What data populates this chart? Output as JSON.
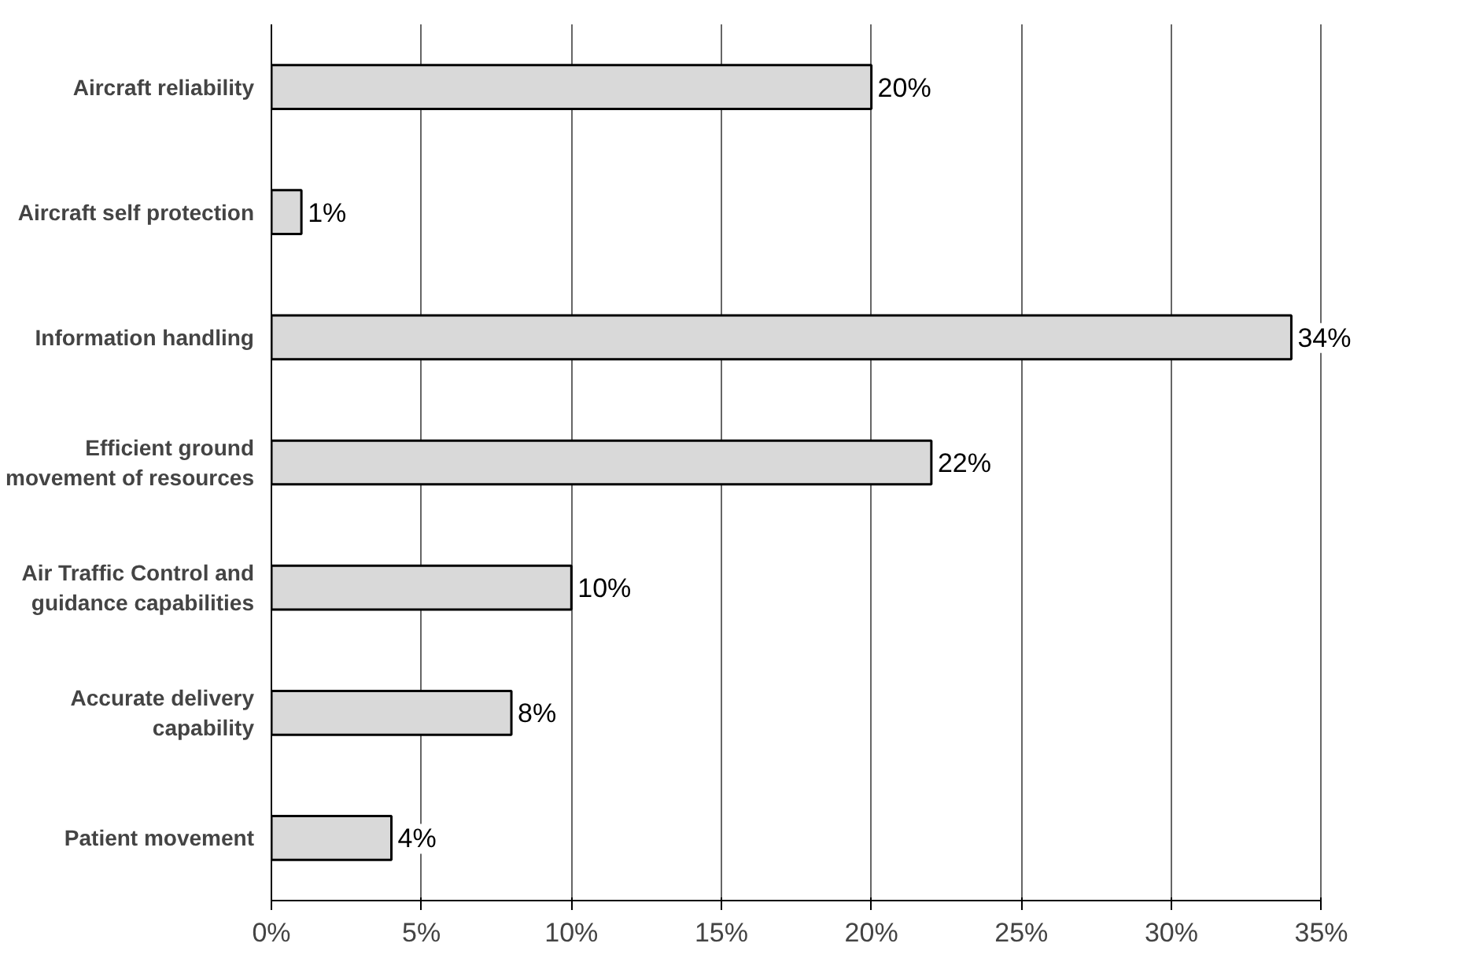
{
  "chart_data": {
    "type": "bar",
    "orientation": "horizontal",
    "categories": [
      "Aircraft reliability",
      "Aircraft self protection",
      "Information handling",
      "Efficient ground movement of resources",
      "Air Traffic Control and guidance capabilities",
      "Accurate delivery capability",
      "Patient movement"
    ],
    "values": [
      20,
      1,
      34,
      22,
      10,
      8,
      4
    ],
    "value_labels": [
      "20%",
      "1%",
      "34%",
      "22%",
      "10%",
      "8%",
      "4%"
    ],
    "color": "#d9d9d9",
    "xlim": [
      0,
      35
    ],
    "xticks": [
      {
        "value": 0,
        "label": "0%"
      },
      {
        "value": 5,
        "label": "5%"
      },
      {
        "value": 10,
        "label": "10%"
      },
      {
        "value": 15,
        "label": "15%"
      },
      {
        "value": 20,
        "label": "20%"
      },
      {
        "value": 25,
        "label": "25%"
      },
      {
        "value": 30,
        "label": "30%"
      },
      {
        "value": 35,
        "label": "35%"
      }
    ],
    "grid": "x"
  }
}
